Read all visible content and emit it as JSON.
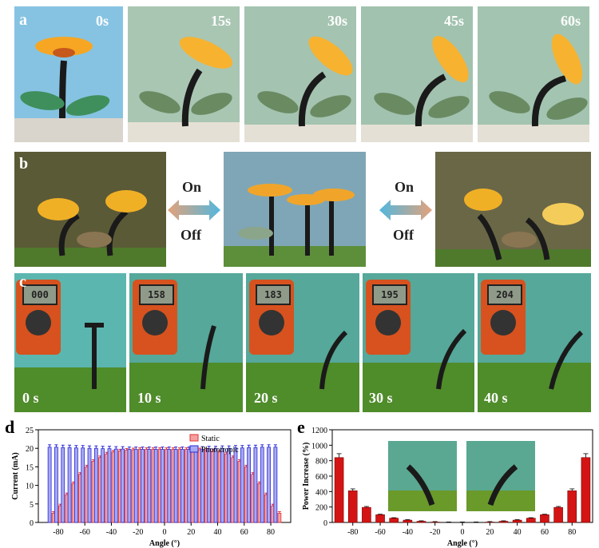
{
  "panel_a": {
    "label": "a",
    "times": [
      "0s",
      "15s",
      "30s",
      "45s",
      "60s"
    ]
  },
  "panel_b": {
    "label": "b",
    "left_arrow_top": "On",
    "left_arrow_bottom": "Off",
    "right_arrow_top": "On",
    "right_arrow_bottom": "Off"
  },
  "panel_c": {
    "label": "c",
    "times": [
      "0 s",
      "10 s",
      "20 s",
      "30 s",
      "40 s"
    ],
    "meter_readings": [
      "000",
      "158",
      "183",
      "195",
      "204"
    ]
  },
  "colors": {
    "static": "#f4a0a0",
    "static_edge": "#e33333",
    "phototropic": "#a8a8f0",
    "phototropic_edge": "#2a2ad8",
    "power_bar": "#d41414"
  },
  "chart_data": [
    {
      "panel": "d",
      "type": "bar",
      "xlabel": "Angle (°)",
      "ylabel": "Current (mA)",
      "xlim": [
        -95,
        95
      ],
      "ylim": [
        0,
        25
      ],
      "xticks": [
        -80,
        -60,
        -40,
        -20,
        0,
        20,
        40,
        60,
        80
      ],
      "yticks": [
        0,
        5,
        10,
        15,
        20,
        25
      ],
      "x": [
        -85,
        -80,
        -75,
        -70,
        -65,
        -60,
        -55,
        -50,
        -45,
        -40,
        -35,
        -30,
        -25,
        -20,
        -15,
        -10,
        -5,
        0,
        5,
        10,
        15,
        20,
        25,
        30,
        35,
        40,
        45,
        50,
        55,
        60,
        65,
        70,
        75,
        80,
        85
      ],
      "series": [
        {
          "name": "Static",
          "values": [
            2.5,
            4.5,
            7.5,
            10.5,
            13.0,
            15.0,
            16.5,
            17.5,
            18.5,
            19.0,
            19.3,
            19.5,
            19.6,
            19.7,
            19.7,
            19.7,
            19.7,
            19.7,
            19.7,
            19.7,
            19.7,
            19.7,
            19.6,
            19.5,
            19.3,
            19.0,
            18.5,
            17.5,
            16.5,
            15.0,
            13.0,
            10.5,
            7.5,
            4.5,
            2.5
          ]
        },
        {
          "name": "Phototropic",
          "values": [
            20.3,
            20.3,
            20.2,
            20.2,
            20.1,
            20.1,
            20.0,
            20.0,
            19.9,
            19.9,
            19.8,
            19.8,
            19.7,
            19.7,
            19.7,
            19.7,
            19.7,
            19.7,
            19.7,
            19.7,
            19.7,
            19.7,
            19.8,
            19.8,
            19.9,
            19.9,
            20.0,
            20.0,
            20.1,
            20.1,
            20.2,
            20.2,
            20.3,
            20.3,
            20.3
          ]
        }
      ],
      "legend": "top-center"
    },
    {
      "panel": "e",
      "type": "bar",
      "xlabel": "Angle (°)",
      "ylabel": "Power Increase (%)",
      "xlim": [
        -95,
        95
      ],
      "ylim": [
        0,
        1200
      ],
      "xticks": [
        -80,
        -60,
        -40,
        -20,
        0,
        20,
        40,
        60,
        80
      ],
      "yticks": [
        0,
        200,
        400,
        600,
        800,
        1000,
        1200
      ],
      "x": [
        -90,
        -80,
        -70,
        -60,
        -50,
        -40,
        -30,
        -20,
        -10,
        0,
        10,
        20,
        30,
        40,
        50,
        60,
        70,
        80,
        90
      ],
      "series": [
        {
          "name": "",
          "values": [
            840,
            410,
            195,
            100,
            55,
            30,
            15,
            5,
            0,
            0,
            0,
            5,
            15,
            30,
            55,
            100,
            195,
            410,
            840
          ]
        }
      ]
    }
  ]
}
